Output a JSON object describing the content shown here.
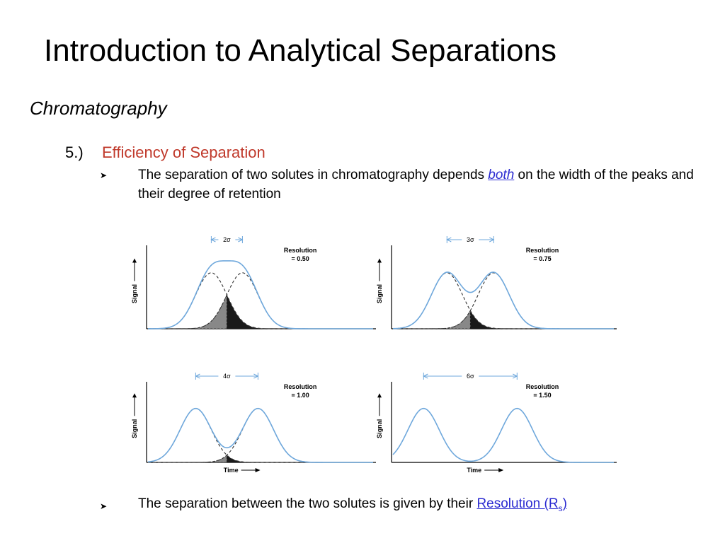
{
  "slide": {
    "title": "Introduction to Analytical Separations",
    "subtitle": "Chromatography",
    "point_number": "5.)",
    "point_heading": "Efficiency of Separation",
    "bullet1": {
      "pre": "The separation of two solutes in chromatography depends ",
      "emph": "both",
      "post": " on the width of the peaks and their degree of retention"
    },
    "bullet2": {
      "pre": "The separation between the two solutes is given by their ",
      "link": "Resolution (R",
      "link_sub": "s",
      "link_post": ")"
    }
  },
  "figure": {
    "axis_y_label": "Signal",
    "axis_x_label": "Time",
    "panels": [
      {
        "spacing_label": "2σ",
        "resolution_label": "Resolution",
        "resolution_value": "= 0.50",
        "resolution": 0.5
      },
      {
        "spacing_label": "3σ",
        "resolution_label": "Resolution",
        "resolution_value": "= 0.75",
        "resolution": 0.75
      },
      {
        "spacing_label": "4σ",
        "resolution_label": "Resolution",
        "resolution_value": "= 1.00",
        "resolution": 1.0
      },
      {
        "spacing_label": "6σ",
        "resolution_label": "Resolution",
        "resolution_value": "= 1.50",
        "resolution": 1.5
      }
    ],
    "colors": {
      "curve": "#6fa8dc",
      "dashed": "#333333",
      "shade_dark": "#1a1a1a",
      "shade_light": "#888888"
    }
  }
}
